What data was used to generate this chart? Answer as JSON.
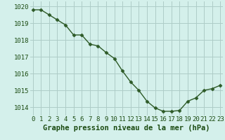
{
  "x": [
    0,
    1,
    2,
    3,
    4,
    5,
    6,
    7,
    8,
    9,
    10,
    11,
    12,
    13,
    14,
    15,
    16,
    17,
    18,
    19,
    20,
    21,
    22,
    23
  ],
  "y": [
    1019.8,
    1019.8,
    1019.5,
    1019.2,
    1018.9,
    1018.3,
    1018.3,
    1017.75,
    1017.65,
    1017.25,
    1016.9,
    1016.15,
    1015.5,
    1015.0,
    1014.35,
    1013.95,
    1013.75,
    1013.75,
    1013.8,
    1014.35,
    1014.55,
    1015.0,
    1015.1,
    1015.3
  ],
  "line_color": "#2d5a27",
  "marker": "D",
  "marker_size": 2.5,
  "line_width": 1.0,
  "bg_color": "#d4f0eb",
  "grid_color": "#aeccc7",
  "xlabel": "Graphe pression niveau de la mer (hPa)",
  "xlabel_color": "#1a4a10",
  "tick_color": "#1a4a10",
  "ylim": [
    1013.5,
    1020.3
  ],
  "yticks": [
    1014,
    1015,
    1016,
    1017,
    1018,
    1019,
    1020
  ],
  "xticks": [
    0,
    1,
    2,
    3,
    4,
    5,
    6,
    7,
    8,
    9,
    10,
    11,
    12,
    13,
    14,
    15,
    16,
    17,
    18,
    19,
    20,
    21,
    22,
    23
  ],
  "xtick_labels": [
    "0",
    "1",
    "2",
    "3",
    "4",
    "5",
    "6",
    "7",
    "8",
    "9",
    "10",
    "11",
    "12",
    "13",
    "14",
    "15",
    "16",
    "17",
    "18",
    "19",
    "20",
    "21",
    "22",
    "23"
  ],
  "tick_fontsize": 6.5,
  "xlabel_fontsize": 7.5
}
